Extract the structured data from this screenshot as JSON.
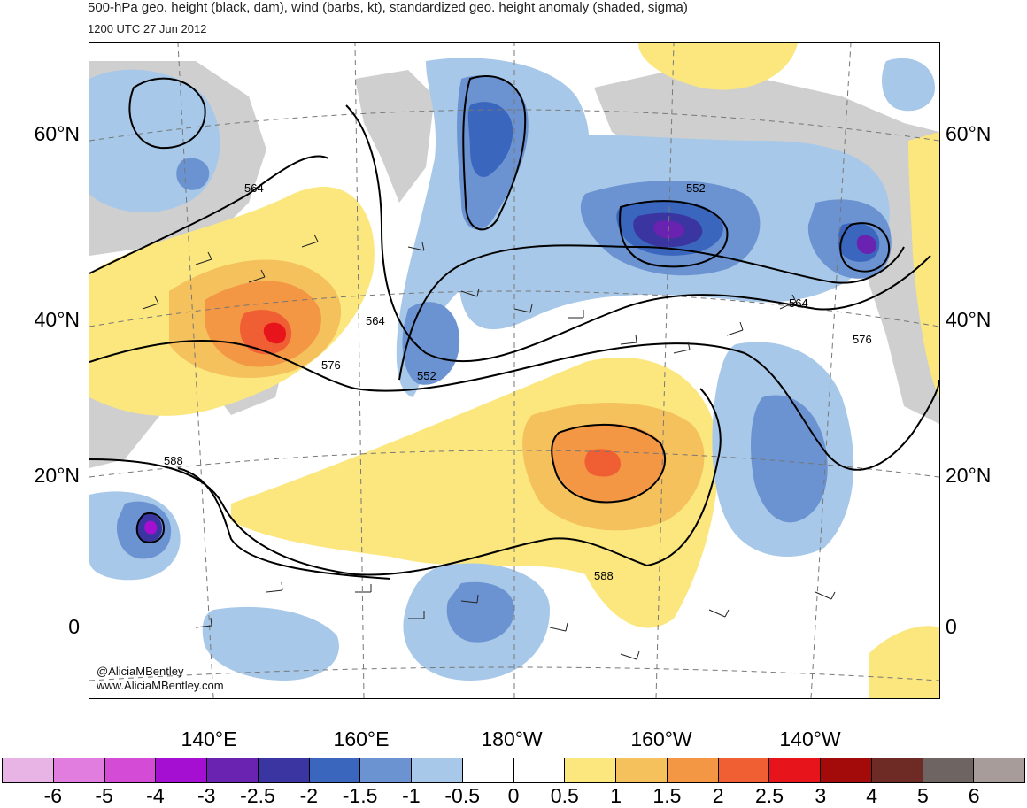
{
  "title": "500-hPa geo. height (black, dam), wind (barbs, kt), standardized geo. height anomaly (shaded, sigma)",
  "subtitle": "1200 UTC 27 Jun 2012",
  "lat_labels": [
    "60°N",
    "40°N",
    "20°N",
    "0"
  ],
  "lon_labels": [
    "140°E",
    "160°E",
    "180°W",
    "160°W",
    "140°W"
  ],
  "contour_labels": [
    "564",
    "552",
    "564",
    "576",
    "552",
    "564",
    "576",
    "588",
    "588"
  ],
  "credit": {
    "handle": "@AliciaMBentley",
    "website": "www.AliciaMBentley.com"
  },
  "colorbar": {
    "labels": [
      "-6",
      "-5",
      "-4",
      "-3",
      "-2.5",
      "-2",
      "-1.5",
      "-1",
      "-0.5",
      "0",
      "0.5",
      "1",
      "1.5",
      "2",
      "2.5",
      "3",
      "4",
      "5",
      "6"
    ],
    "colors": [
      "#e8b4e6",
      "#e27de0",
      "#d44bd6",
      "#a50fd1",
      "#6a22b0",
      "#3a35a0",
      "#3a66bd",
      "#6b93d1",
      "#a7c8e8",
      "#ffffff",
      "#ffffff",
      "#fbe77e",
      "#f5c15c",
      "#f39744",
      "#f05e33",
      "#e8141c",
      "#a30a0a",
      "#6e2a24",
      "#6e6563",
      "#a89c9a"
    ]
  },
  "colors": {
    "land": "#cfcfcf",
    "contour": "#000000"
  }
}
